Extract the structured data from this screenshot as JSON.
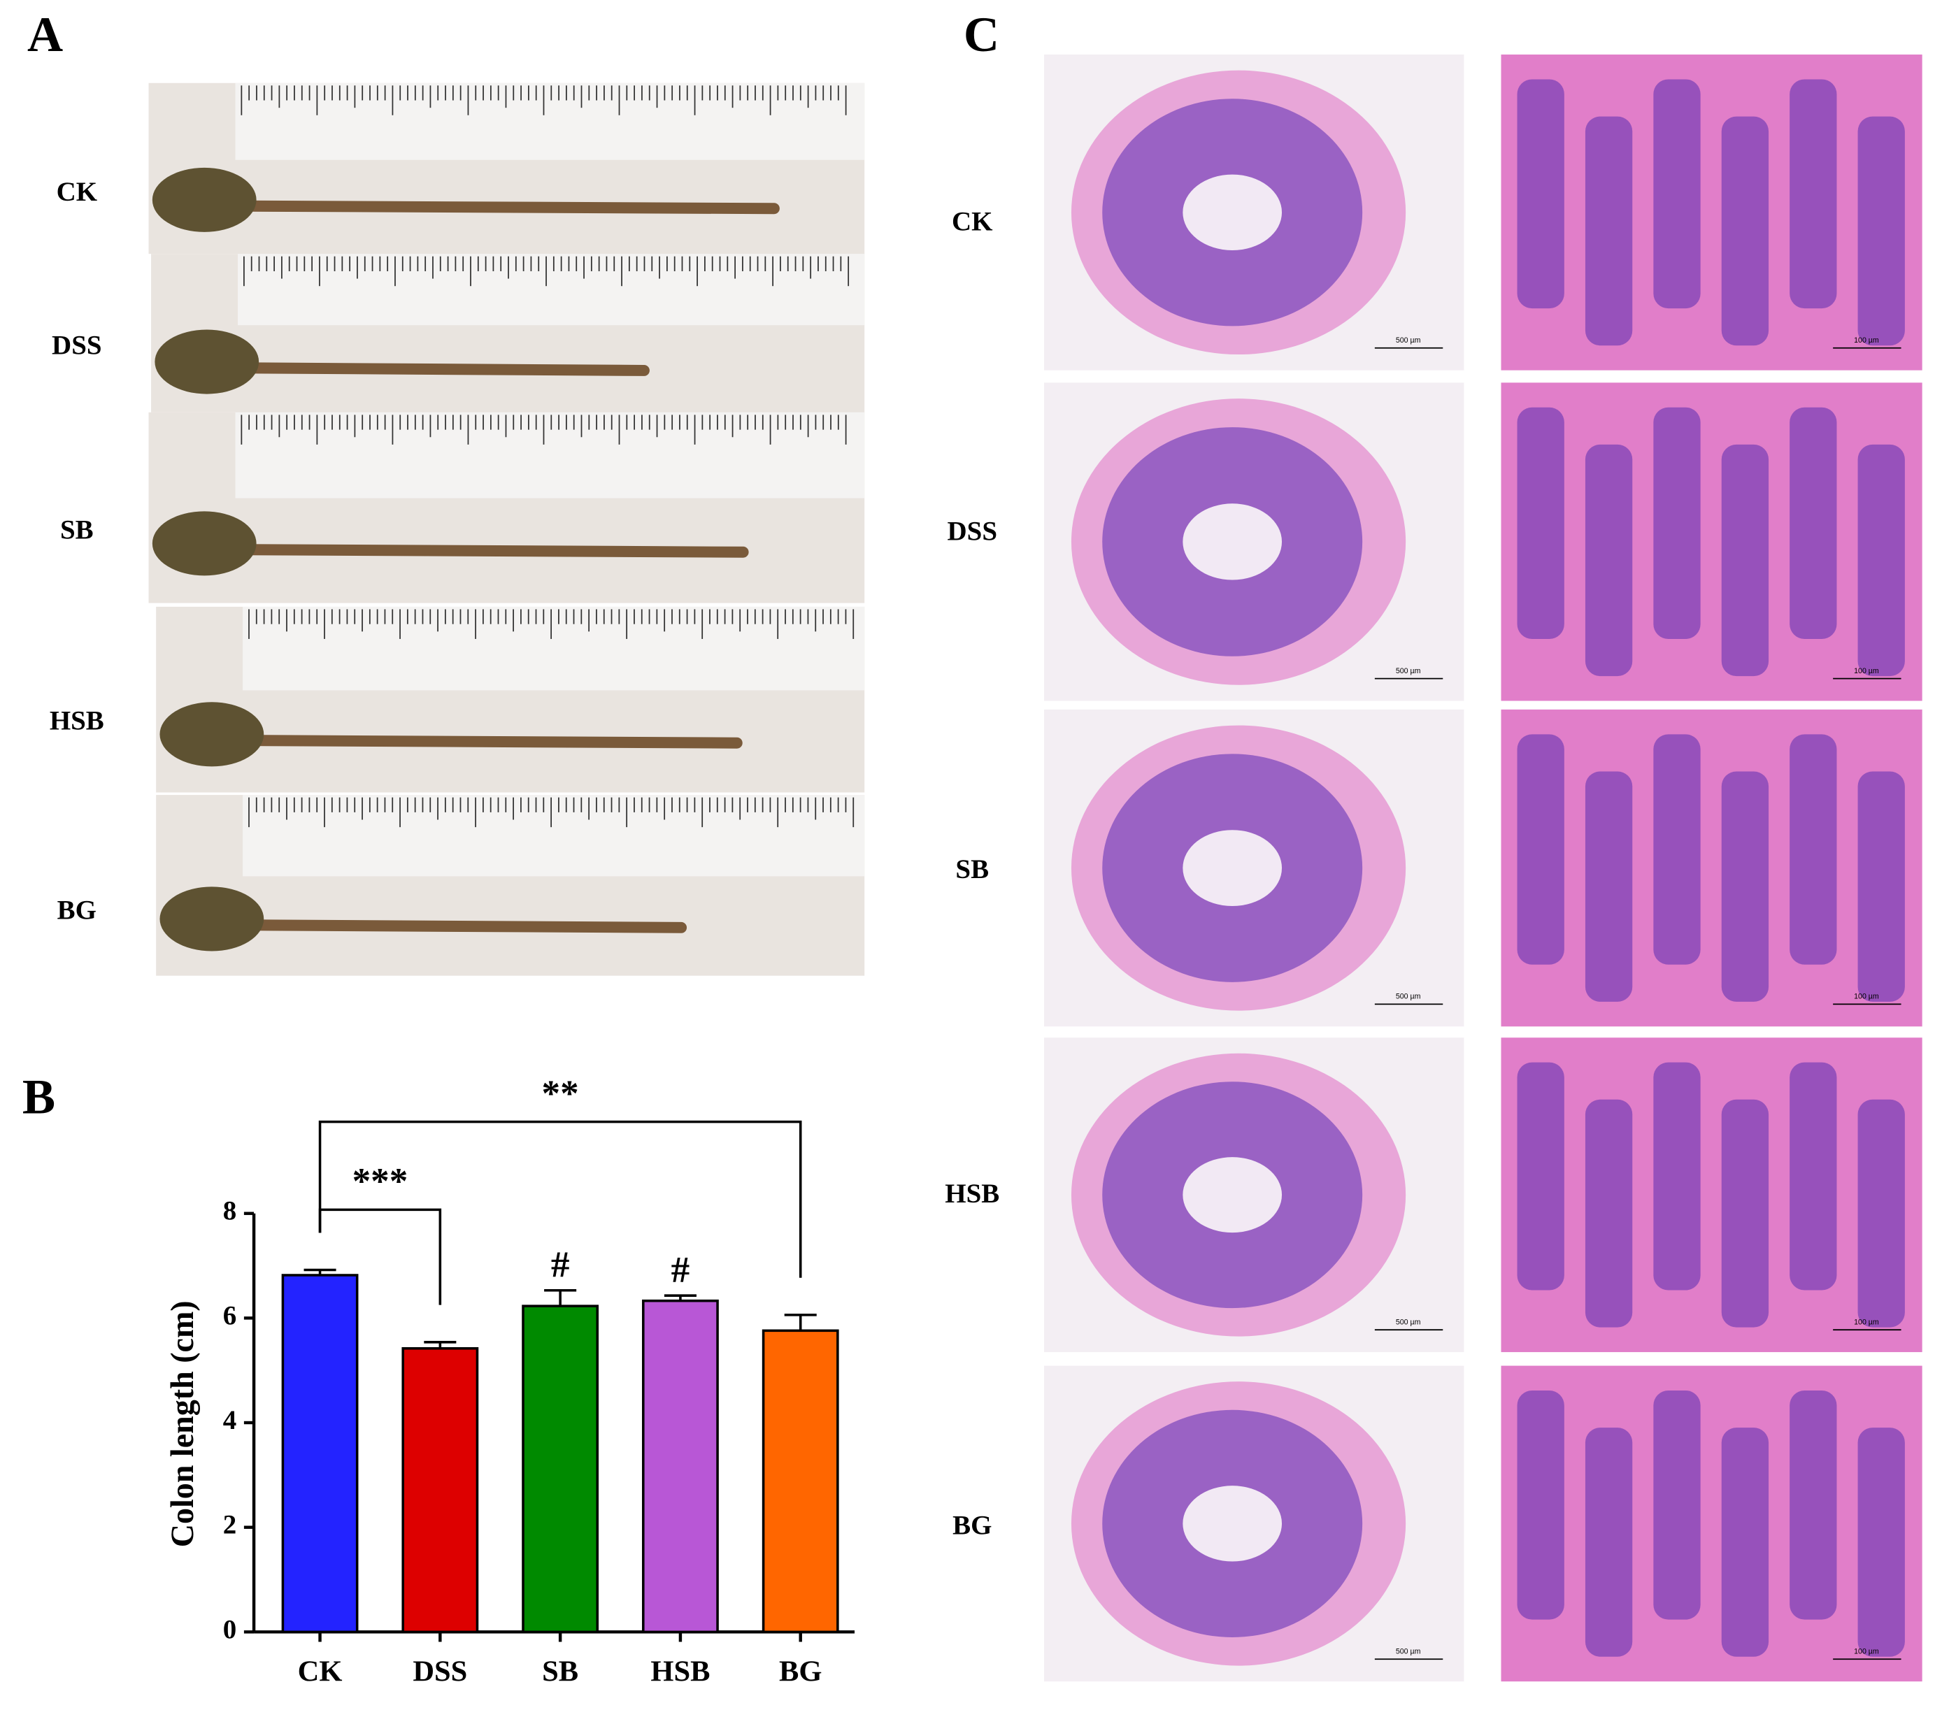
{
  "panels": {
    "A": {
      "label": "A",
      "rows": [
        "CK",
        "DSS",
        "SB",
        "HSB",
        "BG"
      ]
    },
    "B": {
      "label": "B"
    },
    "C": {
      "label": "C",
      "rows": [
        "CK",
        "DSS",
        "SB",
        "HSB",
        "BG"
      ],
      "scale_bars": [
        "500 µm",
        "100 µm"
      ]
    }
  },
  "chart_data": {
    "type": "bar",
    "y_label": "Colon length (cm)",
    "categories": [
      "CK",
      "DSS",
      "SB",
      "HSB",
      "BG"
    ],
    "values": [
      6.82,
      5.42,
      6.23,
      6.33,
      5.76
    ],
    "errors": [
      0.1,
      0.12,
      0.3,
      0.1,
      0.3
    ],
    "colors": [
      "#2323ff",
      "#dd0000",
      "#008a00",
      "#b857d6",
      "#ff6600"
    ],
    "bar_labels": [
      null,
      null,
      "#",
      "#",
      null
    ],
    "comparisons": [
      {
        "label": "***",
        "between": [
          "CK",
          "DSS"
        ]
      },
      {
        "label": "**",
        "between": [
          "CK",
          "BG"
        ]
      }
    ],
    "ylim": [
      0,
      8
    ],
    "yticks": [
      0,
      2,
      4,
      6,
      8
    ]
  }
}
